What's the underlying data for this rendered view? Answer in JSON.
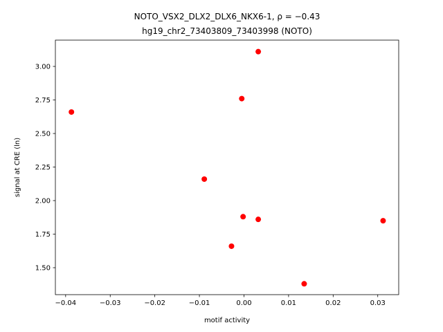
{
  "chart_data": {
    "type": "scatter",
    "title": "NOTO_VSX2_DLX2_DLX6_NKX6-1, ρ = −0.43",
    "subtitle": "hg19_chr2_73403809_73403998 (NOTO)",
    "x_label": "motif activity",
    "y_label": "signal at CRE (ln)",
    "color": "#ff0000",
    "series": [
      {
        "x": [
          0.0032,
          -0.0005,
          -0.0387,
          -0.0089,
          -0.0002,
          0.0032,
          0.0312,
          -0.0028,
          0.0135
        ],
        "values": [
          3.11,
          2.76,
          2.66,
          2.16,
          1.88,
          1.86,
          1.85,
          1.66,
          1.38
        ]
      }
    ],
    "xlim": [
      -0.0423,
      0.0347
    ],
    "ylim": [
      1.299,
      3.196
    ],
    "xticks": [
      {
        "value": -0.04,
        "label": "−0.04"
      },
      {
        "value": -0.03,
        "label": "−0.03"
      },
      {
        "value": -0.02,
        "label": "−0.02"
      },
      {
        "value": -0.01,
        "label": "−0.01"
      },
      {
        "value": 0,
        "label": "0.00"
      },
      {
        "value": 0.01,
        "label": "0.01"
      },
      {
        "value": 0.02,
        "label": "0.02"
      },
      {
        "value": 0.03,
        "label": "0.03"
      }
    ],
    "yticks": [
      {
        "value": 1.5,
        "label": "1.50"
      },
      {
        "value": 1.75,
        "label": "1.75"
      },
      {
        "value": 2,
        "label": "2.00"
      },
      {
        "value": 2.25,
        "label": "2.25"
      },
      {
        "value": 2.5,
        "label": "2.50"
      },
      {
        "value": 2.75,
        "label": "2.75"
      },
      {
        "value": 3,
        "label": "3.00"
      }
    ]
  }
}
